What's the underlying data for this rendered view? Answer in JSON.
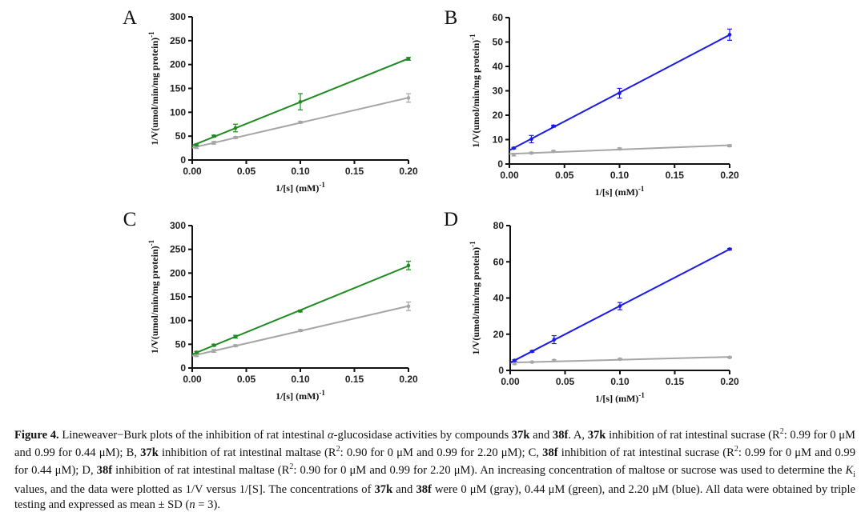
{
  "chart_data": [
    {
      "type": "line",
      "panel": "A",
      "xlabel": "1/[s] (mM)",
      "xlabel_sup": "-1",
      "ylabel": "1/V(umol/min/mg protein)",
      "ylabel_sup": "-1",
      "xlim": [
        0,
        0.2
      ],
      "ylim": [
        0,
        300
      ],
      "xticks": [
        "0.00",
        "0.05",
        "0.10",
        "0.15",
        "0.20"
      ],
      "yticks": [
        "0",
        "50",
        "100",
        "150",
        "200",
        "250",
        "300"
      ],
      "x": [
        0.004,
        0.02,
        0.04,
        0.1,
        0.2
      ],
      "series": [
        {
          "name": "0 μM",
          "color": "#a6a6a6",
          "values": [
            27,
            36,
            47,
            79,
            130
          ],
          "errors": [
            3,
            3,
            2,
            2,
            9
          ]
        },
        {
          "name": "0.44 μM",
          "color": "#1f8a1f",
          "values": [
            32,
            50,
            67,
            122,
            212
          ],
          "errors": [
            2,
            2,
            8,
            17,
            3
          ]
        }
      ]
    },
    {
      "type": "line",
      "panel": "B",
      "xlabel": "1/[s] (mM)",
      "xlabel_sup": "-1",
      "ylabel": "1/V(umol/min/mg protein)",
      "ylabel_sup": "-1",
      "xlim": [
        0,
        0.2
      ],
      "ylim": [
        0,
        60
      ],
      "xticks": [
        "0.00",
        "0.05",
        "0.10",
        "0.15",
        "0.20"
      ],
      "yticks": [
        "0",
        "10",
        "20",
        "30",
        "40",
        "50",
        "60"
      ],
      "x": [
        0.004,
        0.02,
        0.04,
        0.1,
        0.2
      ],
      "series": [
        {
          "name": "0 μM",
          "color": "#a6a6a6",
          "values": [
            3.8,
            4.5,
            5.2,
            6.2,
            7.5
          ],
          "errors": [
            0.5,
            0.3,
            0.3,
            0.4,
            0.4
          ]
        },
        {
          "name": "2.20 μM",
          "color": "#1a1ae6",
          "values": [
            6.5,
            10.2,
            15.5,
            29,
            53
          ],
          "errors": [
            0.3,
            1.5,
            0.4,
            2,
            2.3
          ]
        }
      ]
    },
    {
      "type": "line",
      "panel": "C",
      "xlabel": "1/[s] (mM)",
      "xlabel_sup": "-1",
      "ylabel": "1/V(umol/min/mg protein)",
      "ylabel_sup": "-1",
      "xlim": [
        0,
        0.2
      ],
      "ylim": [
        0,
        300
      ],
      "xticks": [
        "0.00",
        "0.05",
        "0.10",
        "0.15",
        "0.20"
      ],
      "yticks": [
        "0",
        "50",
        "100",
        "150",
        "200",
        "250",
        "300"
      ],
      "x": [
        0.004,
        0.02,
        0.04,
        0.1,
        0.2
      ],
      "series": [
        {
          "name": "0 μM",
          "color": "#a6a6a6",
          "values": [
            27,
            36,
            47,
            79,
            130
          ],
          "errors": [
            3,
            3,
            2,
            2,
            9
          ]
        },
        {
          "name": "0.44 μM",
          "color": "#1f8a1f",
          "values": [
            33,
            48,
            66,
            120,
            216
          ],
          "errors": [
            2,
            2,
            3,
            2,
            9
          ]
        }
      ]
    },
    {
      "type": "line",
      "panel": "D",
      "xlabel": "1/[s] (mM)",
      "xlabel_sup": "-1",
      "ylabel": "1/V(umol/min/mg protein)",
      "ylabel_sup": "-1",
      "xlim": [
        0,
        0.2
      ],
      "ylim": [
        0,
        80
      ],
      "xticks": [
        "0.00",
        "0.05",
        "0.10",
        "0.15",
        "0.20"
      ],
      "yticks": [
        "0",
        "20",
        "40",
        "60",
        "80"
      ],
      "x": [
        0.004,
        0.02,
        0.04,
        0.1,
        0.2
      ],
      "series": [
        {
          "name": "0 μM",
          "color": "#a6a6a6",
          "values": [
            3.8,
            4.6,
            5.5,
            6.2,
            7.2
          ],
          "errors": [
            0.6,
            0.3,
            0.4,
            0.4,
            0.3
          ]
        },
        {
          "name": "2.20 μM",
          "color": "#1a1ae6",
          "values": [
            5.5,
            10.5,
            17,
            35.5,
            67
          ],
          "errors": [
            0.4,
            0.4,
            2.2,
            2,
            0.4
          ]
        }
      ]
    }
  ],
  "caption": [
    {
      "t": "Figure 4.",
      "b": true
    },
    {
      "t": " Lineweaver−Burk plots of the inhibition of rat intestinal "
    },
    {
      "t": "α",
      "i": true
    },
    {
      "t": "-glucosidase activities by compounds "
    },
    {
      "t": "37k",
      "b": true
    },
    {
      "t": " and "
    },
    {
      "t": "38f",
      "b": true
    },
    {
      "t": ". A, "
    },
    {
      "t": "37k",
      "b": true
    },
    {
      "t": " inhibition of rat intestinal sucrase (R"
    },
    {
      "t": "2",
      "sup": true
    },
    {
      "t": ": 0.99 for 0 μM and 0.99 for 0.44 μM); B, "
    },
    {
      "t": "37k",
      "b": true
    },
    {
      "t": " inhibition of rat intestinal maltase (R"
    },
    {
      "t": "2",
      "sup": true
    },
    {
      "t": ": 0.90 for 0 μM and 0.99 for 2.20 μM); C, "
    },
    {
      "t": "38f",
      "b": true
    },
    {
      "t": " inhibition of rat intestinal sucrase (R"
    },
    {
      "t": "2",
      "sup": true
    },
    {
      "t": ": 0.99 for 0 μM and 0.99 for 0.44 μM); D, "
    },
    {
      "t": "38f",
      "b": true
    },
    {
      "t": " inhibition of rat intestinal maltase (R"
    },
    {
      "t": "2",
      "sup": true
    },
    {
      "t": ": 0.90 for 0 μM and 0.99 for 2.20 μM). An increasing concentration of maltose or sucrose was used to determine the "
    },
    {
      "t": "K",
      "i": true
    },
    {
      "t": "i",
      "sub": true
    },
    {
      "t": " values, and the data were plotted as 1/V versus 1/[S]. The concentrations of "
    },
    {
      "t": "37k",
      "b": true
    },
    {
      "t": " and "
    },
    {
      "t": "38f",
      "b": true
    },
    {
      "t": " were 0 μM (gray), 0.44 μM (green), and 2.20 μM (blue). All data were obtained by triple testing and expressed as mean ± SD ("
    },
    {
      "t": "n",
      "i": true
    },
    {
      "t": " = 3)."
    }
  ]
}
